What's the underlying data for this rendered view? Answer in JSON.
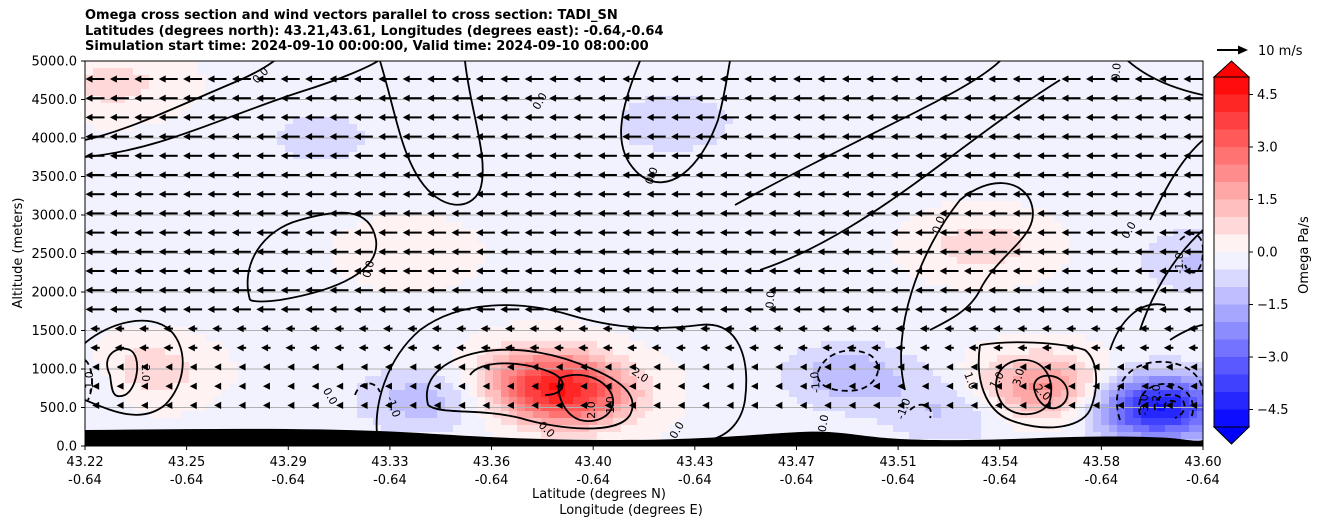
{
  "chart_data": {
    "type": "contour",
    "title_lines": [
      "Omega cross section and wind vectors parallel to cross section: TADI_SN",
      "Latitudes (degrees north): 43.21,43.61, Longitudes (degrees east): -0.64,-0.64",
      "Simulation start time: 2024-09-10 00:00:00, Valid time: 2024-09-10 08:00:00"
    ],
    "ylabel": "Altitude (meters)",
    "xlabel_lat": "Latitude (degrees N)",
    "xlabel_lon": "Longitude (degrees E)",
    "ylim": [
      0,
      5000
    ],
    "yticks": [
      "0.0",
      "500.0",
      "1000.0",
      "1500.0",
      "2000.0",
      "2500.0",
      "3000.0",
      "3500.0",
      "4000.0",
      "4500.0",
      "5000.0"
    ],
    "xticks_lat": [
      "43.22",
      "43.25",
      "43.29",
      "43.33",
      "43.36",
      "43.40",
      "43.43",
      "43.47",
      "43.51",
      "43.54",
      "43.58",
      "43.60"
    ],
    "xticks_lon": [
      "-0.64",
      "-0.64",
      "-0.64",
      "-0.64",
      "-0.64",
      "-0.64",
      "-0.64",
      "-0.64",
      "-0.64",
      "-0.64",
      "-0.64",
      "-0.64"
    ],
    "colorbar": {
      "label": "Omega Pa/s",
      "ticks": [
        "4.5",
        "3.0",
        "1.5",
        "0.0",
        "−1.5",
        "−3.0",
        "−4.5"
      ],
      "range": [
        -5.0,
        5.0
      ],
      "step": 0.5,
      "colormap": "bwr"
    },
    "quiver_key": "10 m/s",
    "contour_labels": [
      "0.0",
      "0.0",
      "0.0",
      "0.0",
      "0.0",
      "0.0",
      "0.0",
      "0.0",
      "0.0",
      "0.0",
      "0.0",
      "0.0",
      "1.0",
      "1.0",
      "2.0",
      "2.0",
      "2.0",
      "3.0",
      "1.0",
      "2.0",
      "-1.0",
      "-1.0",
      "-1.0",
      "-1.0",
      "-2.0",
      "-3.0",
      "-1.0"
    ],
    "omega_features": [
      {
        "lat": 43.385,
        "alt": 650,
        "omega": 3.2
      },
      {
        "lat": 43.375,
        "alt": 900,
        "omega": 2.2
      },
      {
        "lat": 43.545,
        "alt": 750,
        "omega": 2.4
      },
      {
        "lat": 43.235,
        "alt": 950,
        "omega": 2.0
      },
      {
        "lat": 43.585,
        "alt": 500,
        "omega": -4.5
      },
      {
        "lat": 43.225,
        "alt": 900,
        "omega": -1.6
      },
      {
        "lat": 43.48,
        "alt": 900,
        "omega": -1.3
      },
      {
        "lat": 43.335,
        "alt": 600,
        "omega": -1.2
      },
      {
        "lat": 43.515,
        "alt": 450,
        "omega": -1.0
      },
      {
        "lat": 43.6,
        "alt": 2400,
        "omega": -1.0
      },
      {
        "lat": 43.42,
        "alt": 4200,
        "omega": -0.8
      },
      {
        "lat": 43.3,
        "alt": 4000,
        "omega": -0.6
      },
      {
        "lat": 43.525,
        "alt": 2600,
        "omega": 0.9
      },
      {
        "lat": 43.23,
        "alt": 4700,
        "omega": 0.8
      },
      {
        "lat": 43.33,
        "alt": 2500,
        "omega": 0.5
      }
    ],
    "wind": {
      "upper_speed": 10,
      "lower_speed": 3,
      "direction": "toward-south"
    }
  }
}
